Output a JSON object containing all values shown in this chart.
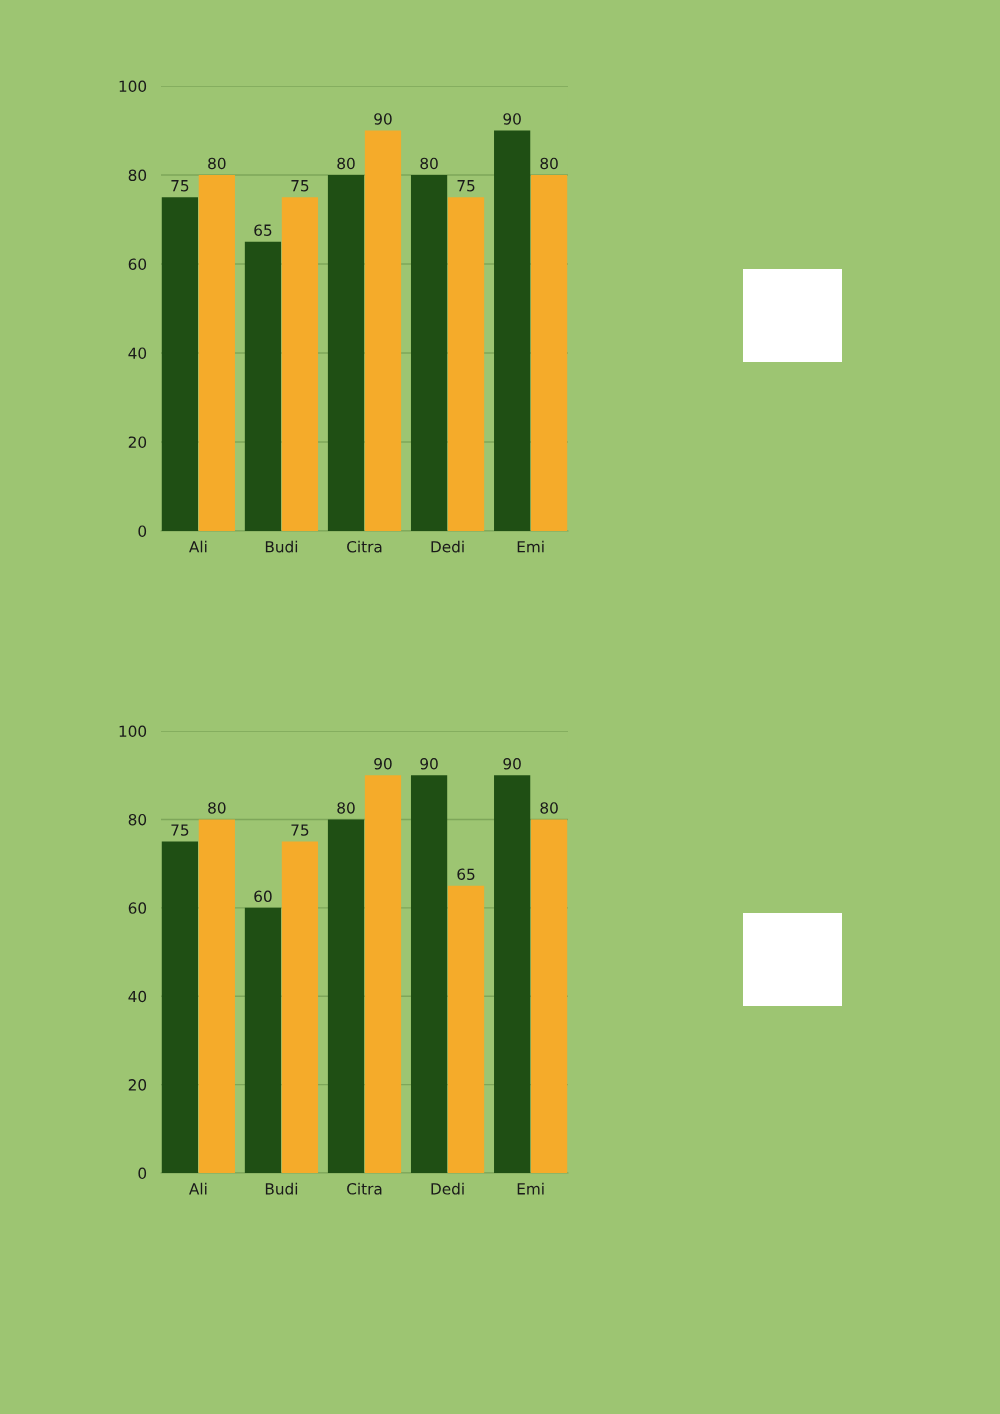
{
  "chart_data": [
    {
      "type": "bar",
      "categories": [
        "Ali",
        "Budi",
        "Citra",
        "Dedi",
        "Emi"
      ],
      "series": [
        {
          "color": "#1f4f14",
          "values": [
            75,
            65,
            80,
            80,
            90
          ]
        },
        {
          "color": "#f5ab2a",
          "values": [
            80,
            75,
            90,
            75,
            80
          ]
        }
      ],
      "ylim": [
        0,
        100
      ],
      "yticks": [
        0,
        20,
        40,
        60,
        80,
        100
      ],
      "grid": "y",
      "data_labels": true
    },
    {
      "type": "bar",
      "categories": [
        "Ali",
        "Budi",
        "Citra",
        "Dedi",
        "Emi"
      ],
      "series": [
        {
          "color": "#1f4f14",
          "values": [
            75,
            60,
            80,
            90,
            90
          ]
        },
        {
          "color": "#f5ab2a",
          "values": [
            80,
            75,
            90,
            65,
            80
          ]
        }
      ],
      "ylim": [
        0,
        100
      ],
      "yticks": [
        0,
        20,
        40,
        60,
        80,
        100
      ],
      "grid": "y",
      "data_labels": true
    }
  ]
}
